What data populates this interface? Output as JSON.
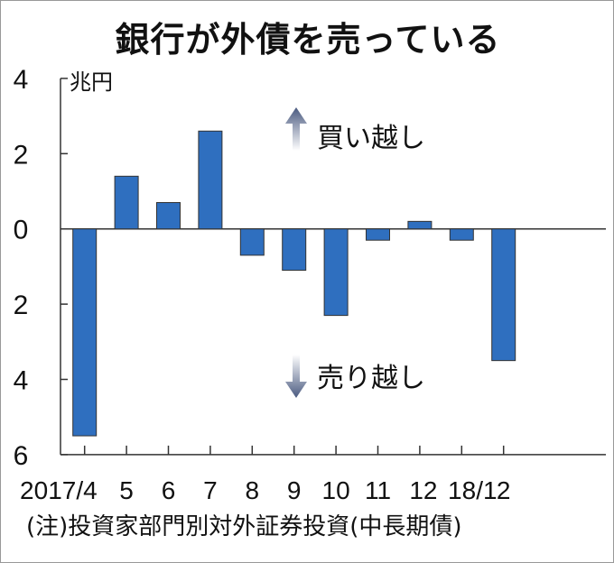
{
  "chart_data": {
    "type": "bar",
    "title": "銀行が外債を売っている",
    "ylabel": "兆円",
    "categories": [
      "2017/4",
      "5",
      "6",
      "7",
      "8",
      "9",
      "10",
      "11",
      "12",
      "18/1",
      "2"
    ],
    "x_tick_labels": [
      "2017/4",
      "5",
      "6",
      "7",
      "8",
      "9",
      "10",
      "11",
      "12",
      "18/1",
      "2"
    ],
    "values": [
      -5.5,
      1.4,
      0.7,
      2.6,
      -0.7,
      -1.1,
      -2.3,
      -0.3,
      0.2,
      -0.3,
      -3.5
    ],
    "ylim": [
      -6,
      4
    ],
    "y_ticks": [
      4,
      2,
      0,
      -2,
      -4,
      -6
    ],
    "y_tick_labels": [
      "4",
      "2",
      "0",
      "2",
      "4",
      "6"
    ],
    "annotations": {
      "up": "買い越し",
      "down": "売り越し"
    },
    "note": "(注)投資家部門別対外証券投資(中長期債)",
    "grid": false,
    "bar_color": "#2f6fbf",
    "bar_edge_color": "#333333"
  }
}
